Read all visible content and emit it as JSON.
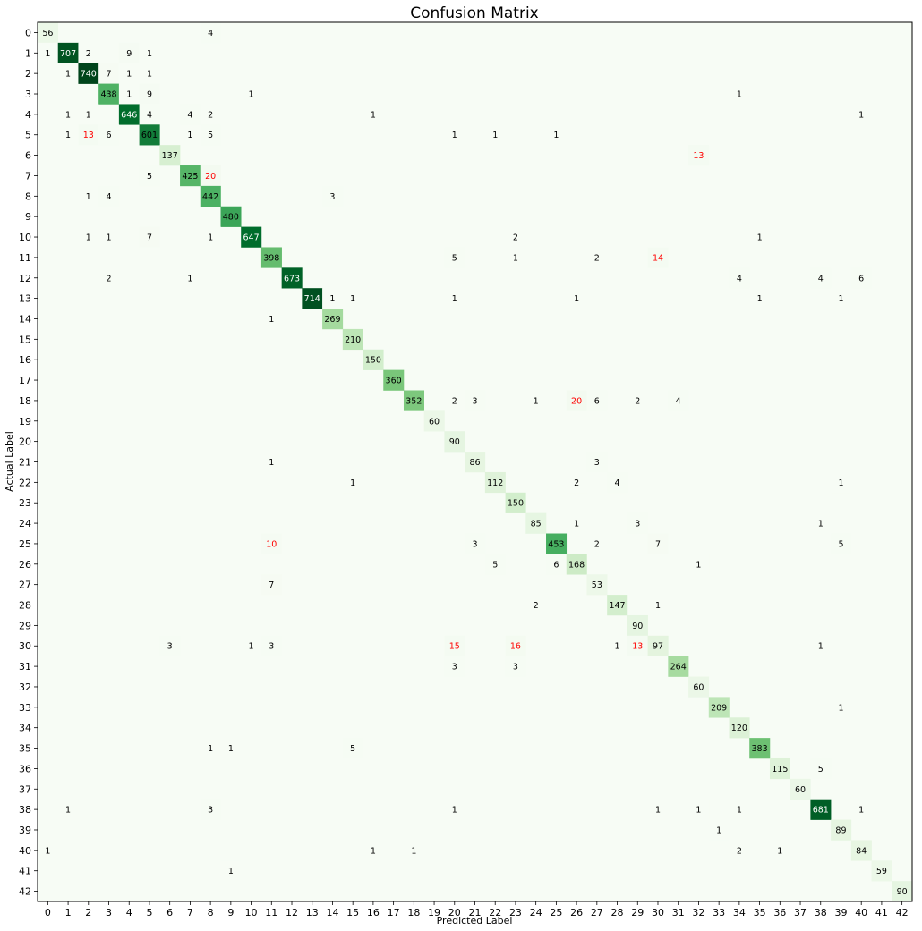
{
  "chart_data": {
    "type": "heatmap",
    "title": "Confusion Matrix",
    "xlabel": "Predicted Label",
    "ylabel": "Actual Label",
    "labels": [
      "0",
      "1",
      "2",
      "3",
      "4",
      "5",
      "6",
      "7",
      "8",
      "9",
      "10",
      "11",
      "12",
      "13",
      "14",
      "15",
      "16",
      "17",
      "18",
      "19",
      "20",
      "21",
      "22",
      "23",
      "24",
      "25",
      "26",
      "27",
      "28",
      "29",
      "30",
      "31",
      "32",
      "33",
      "34",
      "35",
      "36",
      "37",
      "38",
      "39",
      "40",
      "41",
      "42"
    ],
    "colormap": "Greens",
    "vmax": 740,
    "colors": {
      "low": "#f7fcf5",
      "high": "#00441b",
      "text_dark": "#000000",
      "text_light": "#ffffff",
      "text_highlight": "#ff0000"
    },
    "highlight_threshold": 10,
    "diagonal": [
      56,
      707,
      740,
      438,
      646,
      601,
      137,
      425,
      442,
      480,
      647,
      398,
      673,
      714,
      269,
      210,
      150,
      360,
      352,
      60,
      90,
      86,
      112,
      150,
      85,
      453,
      168,
      53,
      147,
      90,
      97,
      264,
      60,
      209,
      120,
      383,
      115,
      60,
      681,
      89,
      84,
      59,
      90
    ],
    "off_diagonal": [
      [
        0,
        8,
        4
      ],
      [
        1,
        0,
        1
      ],
      [
        1,
        2,
        2
      ],
      [
        1,
        4,
        9
      ],
      [
        1,
        5,
        1
      ],
      [
        2,
        1,
        1
      ],
      [
        2,
        3,
        7
      ],
      [
        2,
        4,
        1
      ],
      [
        2,
        5,
        1
      ],
      [
        3,
        4,
        1
      ],
      [
        3,
        5,
        9
      ],
      [
        3,
        10,
        1
      ],
      [
        3,
        34,
        1
      ],
      [
        4,
        1,
        1
      ],
      [
        4,
        2,
        1
      ],
      [
        4,
        5,
        4
      ],
      [
        4,
        7,
        4
      ],
      [
        4,
        8,
        2
      ],
      [
        4,
        16,
        1
      ],
      [
        4,
        40,
        1
      ],
      [
        5,
        1,
        1
      ],
      [
        5,
        2,
        13
      ],
      [
        5,
        3,
        6
      ],
      [
        5,
        7,
        1
      ],
      [
        5,
        8,
        5
      ],
      [
        5,
        20,
        1
      ],
      [
        5,
        22,
        1
      ],
      [
        5,
        25,
        1
      ],
      [
        6,
        32,
        13
      ],
      [
        7,
        5,
        5
      ],
      [
        7,
        8,
        20
      ],
      [
        8,
        2,
        1
      ],
      [
        8,
        3,
        4
      ],
      [
        8,
        14,
        3
      ],
      [
        10,
        2,
        1
      ],
      [
        10,
        3,
        1
      ],
      [
        10,
        5,
        7
      ],
      [
        10,
        8,
        1
      ],
      [
        10,
        23,
        2
      ],
      [
        10,
        35,
        1
      ],
      [
        11,
        20,
        5
      ],
      [
        11,
        23,
        1
      ],
      [
        11,
        27,
        2
      ],
      [
        11,
        30,
        14
      ],
      [
        12,
        3,
        2
      ],
      [
        12,
        7,
        1
      ],
      [
        12,
        34,
        4
      ],
      [
        12,
        38,
        4
      ],
      [
        12,
        40,
        6
      ],
      [
        13,
        14,
        1
      ],
      [
        13,
        15,
        1
      ],
      [
        13,
        20,
        1
      ],
      [
        13,
        26,
        1
      ],
      [
        13,
        35,
        1
      ],
      [
        13,
        39,
        1
      ],
      [
        14,
        11,
        1
      ],
      [
        18,
        20,
        2
      ],
      [
        18,
        21,
        3
      ],
      [
        18,
        24,
        1
      ],
      [
        18,
        26,
        20
      ],
      [
        18,
        27,
        6
      ],
      [
        18,
        29,
        2
      ],
      [
        18,
        31,
        4
      ],
      [
        21,
        11,
        1
      ],
      [
        21,
        27,
        3
      ],
      [
        22,
        15,
        1
      ],
      [
        22,
        26,
        2
      ],
      [
        22,
        28,
        4
      ],
      [
        22,
        39,
        1
      ],
      [
        24,
        26,
        1
      ],
      [
        24,
        29,
        3
      ],
      [
        24,
        38,
        1
      ],
      [
        25,
        11,
        10
      ],
      [
        25,
        21,
        3
      ],
      [
        25,
        27,
        2
      ],
      [
        25,
        30,
        7
      ],
      [
        25,
        39,
        5
      ],
      [
        26,
        22,
        5
      ],
      [
        26,
        25,
        6
      ],
      [
        26,
        32,
        1
      ],
      [
        27,
        11,
        7
      ],
      [
        28,
        24,
        2
      ],
      [
        28,
        30,
        1
      ],
      [
        30,
        6,
        3
      ],
      [
        30,
        10,
        1
      ],
      [
        30,
        11,
        3
      ],
      [
        30,
        20,
        15
      ],
      [
        30,
        23,
        16
      ],
      [
        30,
        28,
        1
      ],
      [
        30,
        29,
        13
      ],
      [
        30,
        38,
        1
      ],
      [
        31,
        20,
        3
      ],
      [
        31,
        23,
        3
      ],
      [
        33,
        39,
        1
      ],
      [
        35,
        8,
        1
      ],
      [
        35,
        9,
        1
      ],
      [
        35,
        15,
        5
      ],
      [
        36,
        38,
        5
      ],
      [
        38,
        1,
        1
      ],
      [
        38,
        8,
        3
      ],
      [
        38,
        20,
        1
      ],
      [
        38,
        30,
        1
      ],
      [
        38,
        32,
        1
      ],
      [
        38,
        34,
        1
      ],
      [
        38,
        40,
        1
      ],
      [
        39,
        33,
        1
      ],
      [
        40,
        0,
        1
      ],
      [
        40,
        16,
        1
      ],
      [
        40,
        18,
        1
      ],
      [
        40,
        34,
        2
      ],
      [
        40,
        36,
        1
      ],
      [
        41,
        9,
        1
      ]
    ]
  }
}
